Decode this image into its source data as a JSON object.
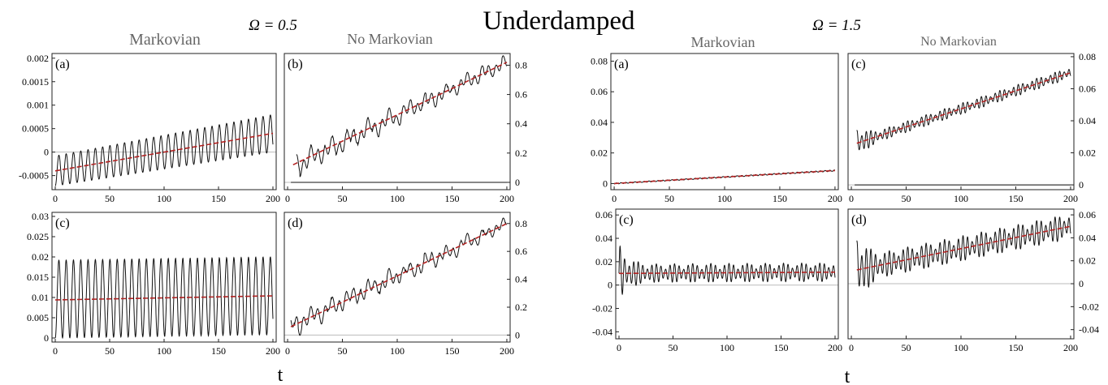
{
  "figure": {
    "title": "Underdamped",
    "left_group_label": "Ω = 0.5",
    "right_group_label": "Ω = 1.5",
    "col_headers": [
      "Markovian",
      "No Markovian",
      "Markovian",
      "No Markovian"
    ],
    "xlabel_left": "t",
    "xlabel_right": "t"
  },
  "colors": {
    "signal": "#111111",
    "trend": "#b22222",
    "zero_line": "#bbbbbb",
    "frame": "#222222",
    "header": "#666666"
  },
  "chart_data": [
    {
      "type": "line",
      "panel_label": "(a)",
      "ylabel_side": "left",
      "xlim": [
        -3,
        203
      ],
      "ylim": [
        -0.0008,
        0.0021
      ],
      "xticks": [
        "0",
        "50",
        "100",
        "150",
        "200"
      ],
      "xtick_values": [
        0,
        50,
        100,
        150,
        200
      ],
      "yticks": [
        "-0.0005",
        "0",
        "0.0005",
        "0.001",
        "0.0015",
        "0.002"
      ],
      "ytick_values": [
        -0.0005,
        0,
        0.0005,
        0.001,
        0.0015,
        0.002
      ],
      "zero_line": true,
      "series": [
        {
          "kind": "oscillation",
          "x_range": [
            0,
            200
          ],
          "center_start": -0.0004,
          "center_end": 0.0004,
          "amp_start": 0.00032,
          "amp_end": 0.0004,
          "period": 6.7
        },
        {
          "kind": "trend",
          "x_range": [
            0,
            200
          ],
          "y_start": -0.0004,
          "y_end": 0.0004
        }
      ]
    },
    {
      "type": "line",
      "panel_label": "(b)",
      "ylabel_side": "right",
      "xlim": [
        -3,
        203
      ],
      "ylim": [
        -0.05,
        0.88
      ],
      "xticks": [
        "0",
        "50",
        "100",
        "150",
        "200"
      ],
      "xtick_values": [
        0,
        50,
        100,
        150,
        200
      ],
      "yticks": [
        "0",
        "0.2",
        "0.4",
        "0.6",
        "0.8"
      ],
      "ytick_values": [
        0,
        0.2,
        0.4,
        0.6,
        0.8
      ],
      "zero_line": true,
      "series": [
        {
          "kind": "noisy",
          "x_range": [
            8,
            200
          ],
          "y_start": 0.12,
          "y_end": 0.82,
          "noise": 0.055,
          "period": 6.5
        },
        {
          "kind": "trend",
          "x_range": [
            5,
            200
          ],
          "y_start": 0.12,
          "y_end": 0.82
        },
        {
          "kind": "flat",
          "x_range": [
            3,
            200
          ],
          "y": 0.0
        }
      ]
    },
    {
      "type": "line",
      "panel_label": "(c)",
      "ylabel_side": "left",
      "xlim": [
        -3,
        203
      ],
      "ylim": [
        -0.001,
        0.031
      ],
      "xticks": [
        "0",
        "50",
        "100",
        "150",
        "200"
      ],
      "xtick_values": [
        0,
        50,
        100,
        150,
        200
      ],
      "yticks": [
        "0",
        "0.005",
        "0.01",
        "0.015",
        "0.02",
        "0.025",
        "0.03"
      ],
      "ytick_values": [
        0,
        0.005,
        0.01,
        0.015,
        0.02,
        0.025,
        0.03
      ],
      "zero_line": false,
      "series": [
        {
          "kind": "oscillation",
          "x_range": [
            0,
            200
          ],
          "center_start": 0.0096,
          "center_end": 0.0104,
          "amp_start": 0.0096,
          "amp_end": 0.0096,
          "period": 6.7
        },
        {
          "kind": "trend",
          "x_range": [
            0,
            200
          ],
          "y_start": 0.0094,
          "y_end": 0.0104
        }
      ]
    },
    {
      "type": "line",
      "panel_label": "(d)",
      "ylabel_side": "right",
      "xlim": [
        -3,
        203
      ],
      "ylim": [
        -0.05,
        0.88
      ],
      "xticks": [
        "0",
        "50",
        "100",
        "150",
        "200"
      ],
      "xtick_values": [
        0,
        50,
        100,
        150,
        200
      ],
      "yticks": [
        "0",
        "0.2",
        "0.4",
        "0.6",
        "0.8"
      ],
      "ytick_values": [
        0,
        0.2,
        0.4,
        0.6,
        0.8
      ],
      "zero_line": true,
      "series": [
        {
          "kind": "noisy",
          "x_range": [
            3,
            200
          ],
          "y_start": 0.06,
          "y_end": 0.8,
          "noise": 0.055,
          "period": 6.5
        },
        {
          "kind": "trend",
          "x_range": [
            3,
            200
          ],
          "y_start": 0.06,
          "y_end": 0.8
        }
      ]
    },
    {
      "type": "line",
      "panel_label": "(a)",
      "ylabel_side": "left",
      "xlim": [
        -3,
        203
      ],
      "ylim": [
        -0.004,
        0.085
      ],
      "xticks": [
        "0",
        "50",
        "100",
        "150",
        "200"
      ],
      "xtick_values": [
        0,
        50,
        100,
        150,
        200
      ],
      "yticks": [
        "0",
        "0.02",
        "0.04",
        "0.06",
        "0.08"
      ],
      "ytick_values": [
        0,
        0.02,
        0.04,
        0.06,
        0.08
      ],
      "zero_line": false,
      "series": [
        {
          "kind": "oscillation",
          "x_range": [
            0,
            200
          ],
          "center_start": 0.0,
          "center_end": 0.0085,
          "amp_start": 0.0003,
          "amp_end": 0.0004,
          "period": 4.2
        },
        {
          "kind": "trend",
          "x_range": [
            0,
            200
          ],
          "y_start": 0.0,
          "y_end": 0.0085
        }
      ]
    },
    {
      "type": "line",
      "panel_label": "(c)",
      "ylabel_side": "right",
      "xlim": [
        -3,
        203
      ],
      "ylim": [
        -0.003,
        0.082
      ],
      "xticks": [
        "0",
        "50",
        "100",
        "150",
        "200"
      ],
      "xtick_values": [
        0,
        50,
        100,
        150,
        200
      ],
      "yticks": [
        "0",
        "0.02",
        "0.04",
        "0.06",
        "0.08"
      ],
      "ytick_values": [
        0,
        0.02,
        0.04,
        0.06,
        0.08
      ],
      "zero_line": true,
      "series": [
        {
          "kind": "beating",
          "x_range": [
            5,
            200
          ],
          "y_start": 0.026,
          "y_end": 0.07,
          "amp_max": 0.0035,
          "period": 4.2,
          "beat_period": 17
        },
        {
          "kind": "trend",
          "x_range": [
            5,
            200
          ],
          "y_start": 0.026,
          "y_end": 0.07
        },
        {
          "kind": "flat",
          "x_range": [
            3,
            200
          ],
          "y": 0.0
        }
      ]
    },
    {
      "type": "line",
      "panel_label": "(c)",
      "ylabel_side": "left",
      "xlim": [
        -3,
        203
      ],
      "ylim": [
        -0.046,
        0.065
      ],
      "xticks": [
        "0",
        "50",
        "100",
        "150",
        "200"
      ],
      "xtick_values": [
        0,
        50,
        100,
        150,
        200
      ],
      "yticks": [
        "-0.04",
        "-0.02",
        "0",
        "0.02",
        "0.04",
        "0.06"
      ],
      "ytick_values": [
        -0.04,
        -0.02,
        0,
        0.02,
        0.04,
        0.06
      ],
      "zero_line": true,
      "series": [
        {
          "kind": "beating",
          "x_range": [
            0,
            200
          ],
          "y_start": 0.01,
          "y_end": 0.011,
          "amp_max": 0.008,
          "period": 4.2,
          "beat_period": 17
        },
        {
          "kind": "trend",
          "x_range": [
            0,
            200
          ],
          "y_start": 0.01,
          "y_end": 0.011
        }
      ]
    },
    {
      "type": "line",
      "panel_label": "(d)",
      "ylabel_side": "right",
      "xlim": [
        -3,
        203
      ],
      "ylim": [
        -0.048,
        0.065
      ],
      "xticks": [
        "0",
        "50",
        "100",
        "150",
        "200"
      ],
      "xtick_values": [
        0,
        50,
        100,
        150,
        200
      ],
      "yticks": [
        "-0.04",
        "-0.02",
        "0",
        "0.02",
        "0.04",
        "0.06"
      ],
      "ytick_values": [
        -0.04,
        -0.02,
        0,
        0.02,
        0.04,
        0.06
      ],
      "zero_line": true,
      "series": [
        {
          "kind": "beating",
          "x_range": [
            5,
            200
          ],
          "y_start": 0.012,
          "y_end": 0.05,
          "amp_max": 0.011,
          "period": 4.2,
          "beat_period": 17
        },
        {
          "kind": "trend",
          "x_range": [
            5,
            200
          ],
          "y_start": 0.012,
          "y_end": 0.05
        }
      ]
    }
  ]
}
